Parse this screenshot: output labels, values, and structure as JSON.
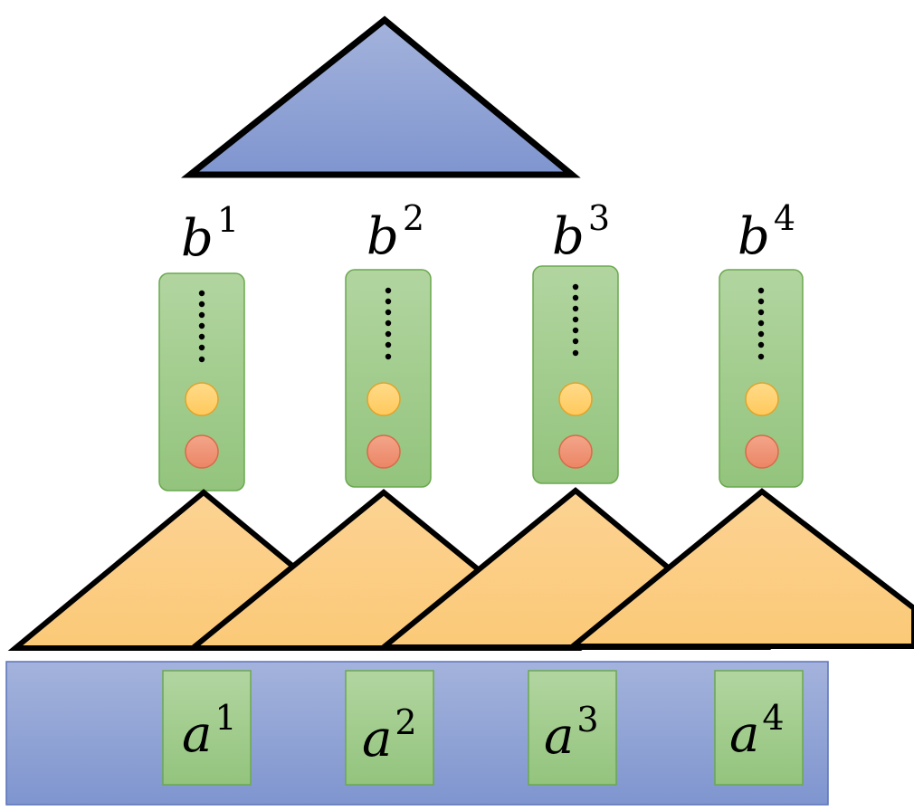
{
  "top_triangle": {
    "fill": "#8a9fd4"
  },
  "columns": [
    {
      "base": "b",
      "sup": "1"
    },
    {
      "base": "b",
      "sup": "2"
    },
    {
      "base": "b",
      "sup": "3"
    },
    {
      "base": "b",
      "sup": "4"
    }
  ],
  "inputs": [
    {
      "base": "a",
      "sup": "1"
    },
    {
      "base": "a",
      "sup": "2"
    },
    {
      "base": "a",
      "sup": "3"
    },
    {
      "base": "a",
      "sup": "4"
    }
  ],
  "colors": {
    "blue": "#8a9fd4",
    "green": "#a9cf94",
    "green_border": "#6aa84f",
    "orange_triangle": "#fbd190",
    "yellow_circle": "#ffcc66",
    "red_circle": "#ef8f74"
  }
}
